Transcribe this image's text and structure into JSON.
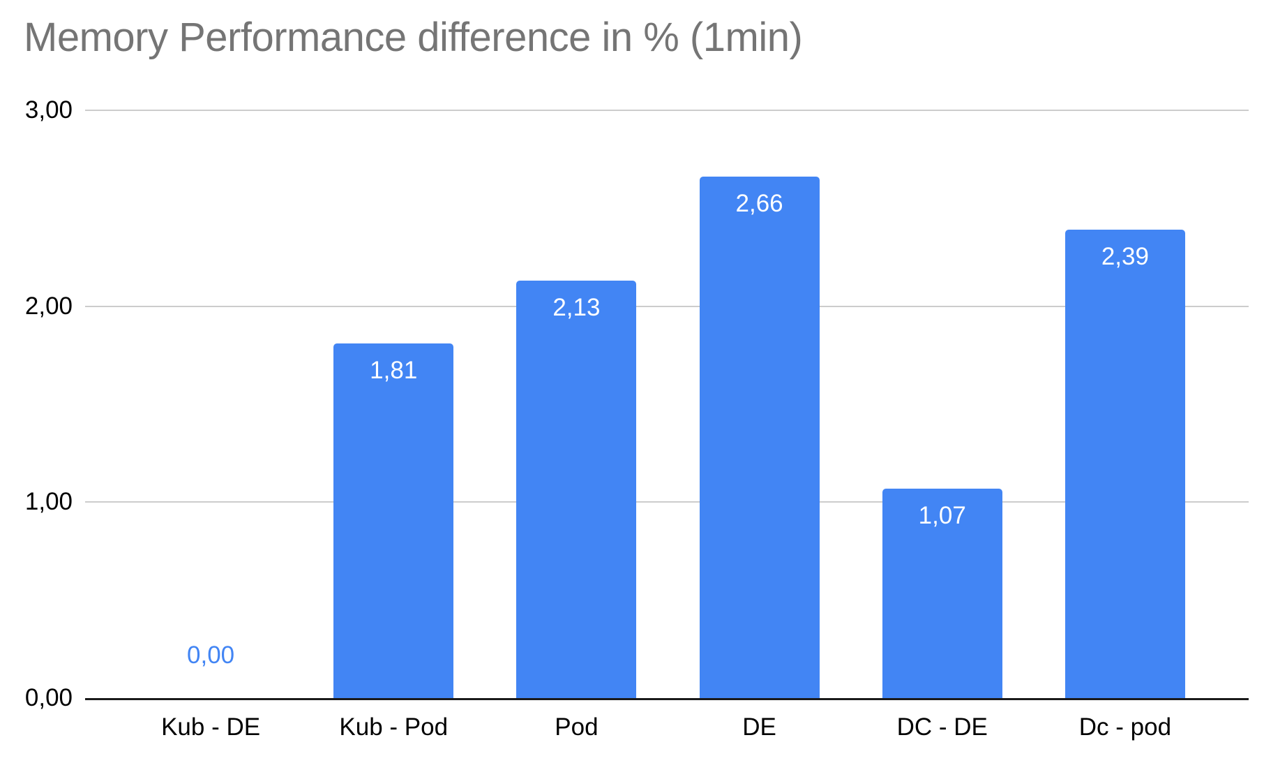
{
  "chart_data": {
    "type": "bar",
    "title": "Memory Performance difference in % (1min)",
    "categories": [
      "Kub - DE",
      "Kub - Pod",
      "Pod",
      "DE",
      "DC - DE",
      "Dc - pod"
    ],
    "values": [
      0.0,
      1.81,
      2.13,
      2.66,
      1.07,
      2.39
    ],
    "value_labels": [
      "0,00",
      "1,81",
      "2,13",
      "2,66",
      "1,07",
      "2,39"
    ],
    "xlabel": "",
    "ylabel": "",
    "ylim": [
      0,
      3
    ],
    "y_tick_labels": [
      "0,00",
      "1,00",
      "2,00",
      "3,00"
    ],
    "grid": true,
    "legend_position": "none",
    "decimal_separator": ",",
    "colors": {
      "bar": "#4285f4",
      "value_label_inside": "#ffffff",
      "value_label_zero": "#4285f4",
      "title": "#757575",
      "axis_labels": "#000000",
      "gridline": "#cccccc",
      "axis_line": "#1a1a1a",
      "background": "#ffffff"
    }
  }
}
